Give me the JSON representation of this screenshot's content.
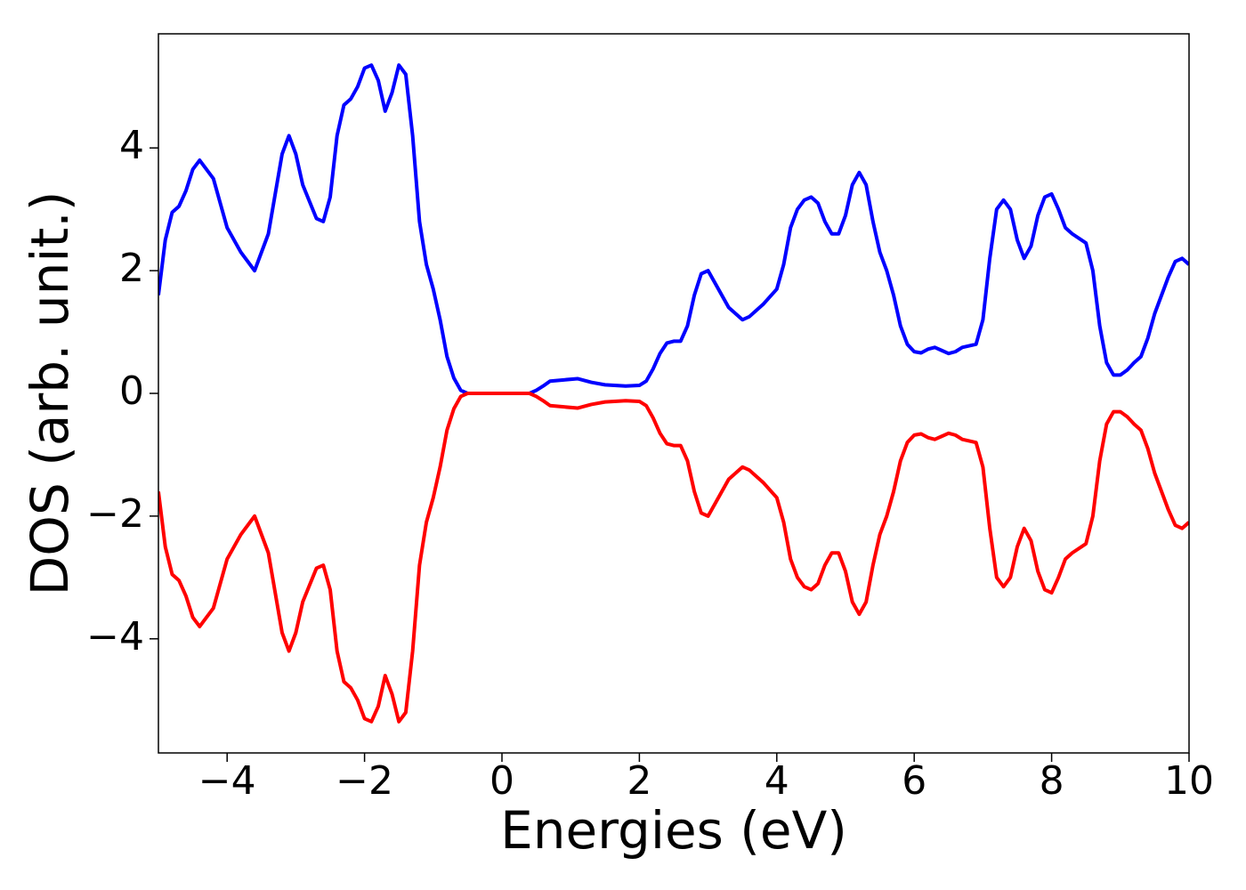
{
  "chart_data": {
    "type": "line",
    "xlabel": "Energies (eV)",
    "ylabel": "DOS (arb. unit.)",
    "x": [
      -5,
      -4.9,
      -4.8,
      -4.7,
      -4.6,
      -4.5,
      -4.4,
      -4.2,
      -4,
      -3.8,
      -3.6,
      -3.4,
      -3.2,
      -3.1,
      -3,
      -2.9,
      -2.7,
      -2.6,
      -2.5,
      -2.4,
      -2.3,
      -2.2,
      -2.1,
      -2,
      -1.9,
      -1.8,
      -1.7,
      -1.6,
      -1.5,
      -1.4,
      -1.3,
      -1.2,
      -1.1,
      -1,
      -0.9,
      -0.8,
      -0.7,
      -0.6,
      -0.5,
      0.4,
      0.5,
      0.6,
      0.7,
      0.9,
      1.1,
      1.3,
      1.5,
      1.8,
      2,
      2.1,
      2.2,
      2.3,
      2.4,
      2.5,
      2.6,
      2.7,
      2.8,
      2.9,
      3,
      3.1,
      3.3,
      3.5,
      3.6,
      3.8,
      4,
      4.1,
      4.2,
      4.3,
      4.4,
      4.5,
      4.6,
      4.7,
      4.8,
      4.9,
      5,
      5.1,
      5.2,
      5.3,
      5.4,
      5.5,
      5.6,
      5.7,
      5.8,
      5.9,
      6,
      6.1,
      6.2,
      6.3,
      6.4,
      6.5,
      6.6,
      6.7,
      6.9,
      7,
      7.1,
      7.2,
      7.3,
      7.4,
      7.5,
      7.6,
      7.7,
      7.8,
      7.9,
      8,
      8.1,
      8.2,
      8.3,
      8.5,
      8.6,
      8.7,
      8.8,
      8.9,
      9,
      9.1,
      9.2,
      9.3,
      9.4,
      9.5,
      9.7,
      9.8,
      9.9,
      10
    ],
    "series": [
      {
        "color": "#0000ff",
        "values": [
          1.6,
          2.5,
          2.95,
          3.05,
          3.3,
          3.65,
          3.8,
          3.5,
          2.7,
          2.3,
          2.0,
          2.6,
          3.9,
          4.2,
          3.9,
          3.4,
          2.85,
          2.8,
          3.2,
          4.2,
          4.7,
          4.8,
          5.0,
          5.3,
          5.35,
          5.1,
          4.6,
          4.9,
          5.35,
          5.2,
          4.2,
          2.8,
          2.1,
          1.7,
          1.2,
          0.6,
          0.25,
          0.05,
          0,
          0,
          0.05,
          0.12,
          0.2,
          0.22,
          0.24,
          0.18,
          0.14,
          0.12,
          0.13,
          0.2,
          0.4,
          0.65,
          0.82,
          0.85,
          0.85,
          1.1,
          1.6,
          1.95,
          2.0,
          1.8,
          1.4,
          1.2,
          1.25,
          1.45,
          1.7,
          2.1,
          2.7,
          3.0,
          3.15,
          3.2,
          3.1,
          2.8,
          2.6,
          2.6,
          2.9,
          3.4,
          3.6,
          3.4,
          2.8,
          2.3,
          2.0,
          1.6,
          1.1,
          0.8,
          0.68,
          0.66,
          0.72,
          0.75,
          0.7,
          0.65,
          0.68,
          0.75,
          0.8,
          1.2,
          2.2,
          3.0,
          3.15,
          3.0,
          2.5,
          2.2,
          2.4,
          2.9,
          3.2,
          3.25,
          3.0,
          2.7,
          2.6,
          2.45,
          2.0,
          1.1,
          0.5,
          0.3,
          0.3,
          0.38,
          0.5,
          0.6,
          0.9,
          1.3,
          1.9,
          2.15,
          2.2,
          2.1
        ]
      },
      {
        "color": "#ff0000",
        "values": [
          -1.6,
          -2.5,
          -2.95,
          -3.05,
          -3.3,
          -3.65,
          -3.8,
          -3.5,
          -2.7,
          -2.3,
          -2.0,
          -2.6,
          -3.9,
          -4.2,
          -3.9,
          -3.4,
          -2.85,
          -2.8,
          -3.2,
          -4.2,
          -4.7,
          -4.8,
          -5.0,
          -5.3,
          -5.35,
          -5.1,
          -4.6,
          -4.9,
          -5.35,
          -5.2,
          -4.2,
          -2.8,
          -2.1,
          -1.7,
          -1.2,
          -0.6,
          -0.25,
          -0.05,
          0,
          0,
          -0.05,
          -0.12,
          -0.2,
          -0.22,
          -0.24,
          -0.18,
          -0.14,
          -0.12,
          -0.13,
          -0.2,
          -0.4,
          -0.65,
          -0.82,
          -0.85,
          -0.85,
          -1.1,
          -1.6,
          -1.95,
          -2.0,
          -1.8,
          -1.4,
          -1.2,
          -1.25,
          -1.45,
          -1.7,
          -2.1,
          -2.7,
          -3.0,
          -3.15,
          -3.2,
          -3.1,
          -2.8,
          -2.6,
          -2.6,
          -2.9,
          -3.4,
          -3.6,
          -3.4,
          -2.8,
          -2.3,
          -2.0,
          -1.6,
          -1.1,
          -0.8,
          -0.68,
          -0.66,
          -0.72,
          -0.75,
          -0.7,
          -0.65,
          -0.68,
          -0.75,
          -0.8,
          -1.2,
          -2.2,
          -3.0,
          -3.15,
          -3.0,
          -2.5,
          -2.2,
          -2.4,
          -2.9,
          -3.2,
          -3.25,
          -3.0,
          -2.7,
          -2.6,
          -2.45,
          -2.0,
          -1.1,
          -0.5,
          -0.3,
          -0.3,
          -0.38,
          -0.5,
          -0.6,
          -0.9,
          -1.3,
          -1.9,
          -2.15,
          -2.2,
          -2.1
        ]
      }
    ],
    "xlim": [
      -5,
      10
    ],
    "xticks": [
      {
        "value": -4,
        "label": "−4"
      },
      {
        "value": -2,
        "label": "−2"
      },
      0,
      2,
      4,
      6,
      8,
      10
    ],
    "ylim": [
      -5.86,
      5.86
    ],
    "yticks": [
      {
        "value": -4,
        "label": "−4"
      },
      {
        "value": -2,
        "label": "−2"
      },
      0,
      2,
      4
    ],
    "grid": false
  }
}
